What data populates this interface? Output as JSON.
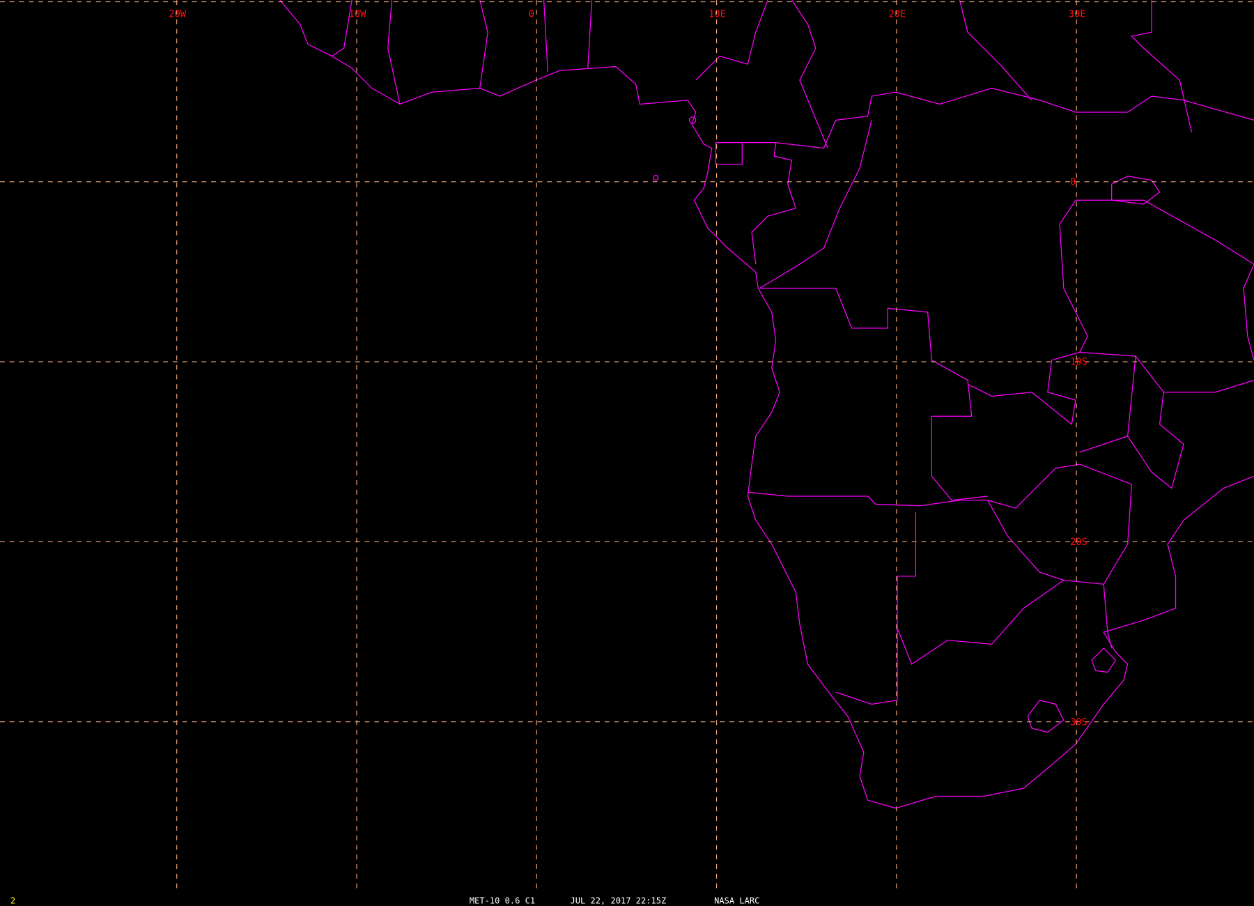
{
  "map": {
    "longitudes": [
      {
        "value": -20,
        "label": "20W"
      },
      {
        "value": -10,
        "label": "10W"
      },
      {
        "value": 0,
        "label": "0"
      },
      {
        "value": 10,
        "label": "10E"
      },
      {
        "value": 20,
        "label": "20E"
      },
      {
        "value": 30,
        "label": "30E"
      }
    ],
    "latitudes": [
      {
        "value": 10,
        "label": ""
      },
      {
        "value": 0,
        "label": "0"
      },
      {
        "value": -10,
        "label": "10S"
      },
      {
        "value": -20,
        "label": "20S"
      },
      {
        "value": -30,
        "label": "30S"
      }
    ],
    "colors": {
      "background": "#000000",
      "grid": "#f0a878",
      "grid_labels": "#ff1010",
      "boundaries": "#ff00ff",
      "footer_text": "#ffffff",
      "frame_number": "#ffff00"
    }
  },
  "footer": {
    "frame_number": "2",
    "satellite": "MET-10 0.6 C1",
    "datetime": "JUL 22, 2017 22:15Z",
    "source": "NASA LARC"
  }
}
